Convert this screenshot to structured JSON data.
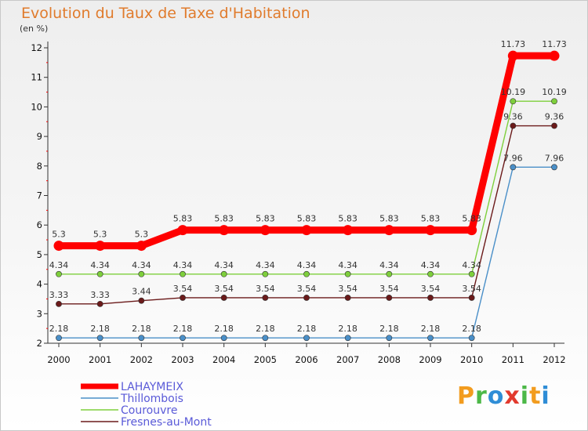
{
  "chart_data": {
    "type": "line",
    "title": "Evolution du Taux de Taxe d'Habitation",
    "unit_label": "(en %)",
    "xlabel": "",
    "ylabel": "",
    "categories": [
      "2000",
      "2001",
      "2002",
      "2003",
      "2004",
      "2005",
      "2006",
      "2007",
      "2008",
      "2009",
      "2010",
      "2011",
      "2012"
    ],
    "ylim": [
      2,
      12
    ],
    "yticks": [
      2,
      3,
      4,
      5,
      6,
      7,
      8,
      9,
      10,
      11,
      12
    ],
    "legend_position": "bottom-left",
    "series": [
      {
        "name": "Thillombois",
        "color": "#4a8fc8",
        "emphasis": false,
        "values": [
          2.18,
          2.18,
          2.18,
          2.18,
          2.18,
          2.18,
          2.18,
          2.18,
          2.18,
          2.18,
          2.18,
          7.96,
          7.96
        ],
        "labels": [
          "2.18",
          "2.18",
          "2.18",
          "2.18",
          "2.18",
          "2.18",
          "2.18",
          "2.18",
          "2.18",
          "2.18",
          "2.18",
          "7.96",
          "7.96"
        ]
      },
      {
        "name": "Courouvre",
        "color": "#7ecf3c",
        "emphasis": false,
        "values": [
          4.34,
          4.34,
          4.34,
          4.34,
          4.34,
          4.34,
          4.34,
          4.34,
          4.34,
          4.34,
          4.34,
          10.19,
          10.19
        ],
        "labels": [
          "4.34",
          "4.34",
          "4.34",
          "4.34",
          "4.34",
          "4.34",
          "4.34",
          "4.34",
          "4.34",
          "4.34",
          "4.34",
          "10.19",
          "10.19"
        ]
      },
      {
        "name": "Fresnes-au-Mont",
        "color": "#6b1a1a",
        "emphasis": false,
        "values": [
          3.33,
          3.33,
          3.44,
          3.54,
          3.54,
          3.54,
          3.54,
          3.54,
          3.54,
          3.54,
          3.54,
          9.36,
          9.36
        ],
        "labels": [
          "3.33",
          "3.33",
          "3.44",
          "3.54",
          "3.54",
          "3.54",
          "3.54",
          "3.54",
          "3.54",
          "3.54",
          "3.54",
          "9.36",
          "9.36"
        ]
      },
      {
        "name": "LAHAYMEIX",
        "color": "#ff0000",
        "emphasis": true,
        "values": [
          5.3,
          5.3,
          5.3,
          5.83,
          5.83,
          5.83,
          5.83,
          5.83,
          5.83,
          5.83,
          5.83,
          11.73,
          11.73
        ],
        "labels": [
          "5.3",
          "5.3",
          "5.3",
          "5.83",
          "5.83",
          "5.83",
          "5.83",
          "5.83",
          "5.83",
          "5.83",
          "5.83",
          "11.73",
          "11.73"
        ]
      }
    ],
    "legend_order": [
      "LAHAYMEIX",
      "Thillombois",
      "Courouvre",
      "Fresnes-au-Mont"
    ]
  },
  "logo": {
    "letters": [
      "P",
      "r",
      "o",
      "x",
      "i",
      "t",
      "i"
    ],
    "colors": [
      "#f29c1f",
      "#4cb848",
      "#2f8dd6",
      "#e23a2e",
      "#4cb848",
      "#f29c1f",
      "#2f8dd6"
    ]
  }
}
